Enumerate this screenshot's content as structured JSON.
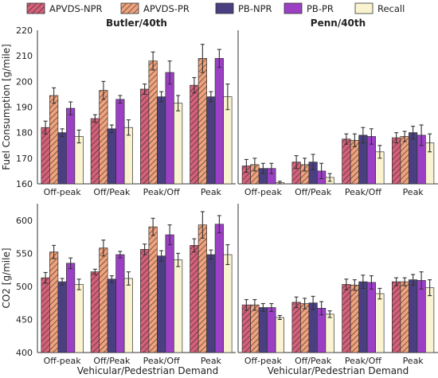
{
  "chart_data": {
    "type": "bar",
    "legend": {
      "placement": "top",
      "entries": [
        "APVDS-NPR",
        "APVDS-PR",
        "PB-NPR",
        "PB-PR",
        "Recall"
      ]
    },
    "series_style": [
      {
        "name": "APVDS-NPR",
        "color": "#d6607a",
        "hatch": true
      },
      {
        "name": "APVDS-PR",
        "color": "#f0a27c",
        "hatch": true
      },
      {
        "name": "PB-NPR",
        "color": "#4a3f80",
        "hatch": false
      },
      {
        "name": "PB-PR",
        "color": "#9b3fc4",
        "hatch": false
      },
      {
        "name": "Recall",
        "color": "#faf3cf",
        "hatch": false
      }
    ],
    "categories": [
      "Off-peak",
      "Off/Peak",
      "Peak/Off",
      "Peak"
    ],
    "xlabel": "Vehicular/Pedestrian Demand",
    "rows": [
      {
        "ylabel": "Fuel Consumption [g/mile]",
        "ylim": [
          160,
          220
        ],
        "yticks": [
          160,
          170,
          180,
          190,
          200,
          210,
          220
        ],
        "panels": [
          {
            "title": "Butler/40th",
            "values": [
              [
                182,
                185.5,
                197,
                198.5
              ],
              [
                194.5,
                196.5,
                208,
                209
              ],
              [
                180,
                181.5,
                194,
                194
              ],
              [
                189.5,
                193,
                203.5,
                209
              ],
              [
                178.5,
                182,
                191.5,
                194
              ]
            ],
            "errors": [
              [
                2.5,
                1.5,
                2,
                3
              ],
              [
                3,
                3.5,
                3.5,
                5.5
              ],
              [
                1.5,
                1.5,
                2,
                2
              ],
              [
                2.5,
                1.5,
                4.5,
                3.5
              ],
              [
                2.5,
                3,
                3,
                5
              ]
            ]
          },
          {
            "title": "Penn/40th",
            "values": [
              [
                167,
                168.5,
                177.5,
                178
              ],
              [
                167.5,
                167.5,
                177,
                178.5
              ],
              [
                166,
                168.5,
                179,
                180
              ],
              [
                166,
                165,
                178.5,
                179
              ],
              [
                160.5,
                162.5,
                172.5,
                176
              ]
            ],
            "errors": [
              [
                2.5,
                2.5,
                2,
                2
              ],
              [
                2.5,
                2.5,
                2.5,
                2
              ],
              [
                2,
                3,
                3,
                2.5
              ],
              [
                2,
                3,
                3,
                4
              ],
              [
                0.5,
                1.5,
                2.5,
                3.5
              ]
            ]
          }
        ]
      },
      {
        "ylabel": "CO2 [g/mile]",
        "ylim": [
          400,
          625
        ],
        "yticks": [
          400,
          450,
          500,
          550,
          600
        ],
        "panels": [
          {
            "title": "",
            "values": [
              [
                513,
                522,
                556,
                562
              ],
              [
                552,
                558,
                590,
                593
              ],
              [
                507,
                511,
                546,
                548
              ],
              [
                535,
                548,
                578,
                594
              ],
              [
                503,
                512,
                540,
                548
              ]
            ],
            "errors": [
              [
                8,
                4,
                8,
                10
              ],
              [
                10,
                12,
                13,
                20
              ],
              [
                5,
                5,
                8,
                7
              ],
              [
                8,
                5,
                15,
                13
              ],
              [
                8,
                10,
                10,
                15
              ]
            ]
          },
          {
            "title": "",
            "values": [
              [
                472,
                476,
                503,
                507
              ],
              [
                472,
                474,
                502,
                507
              ],
              [
                468,
                475,
                507,
                510
              ],
              [
                468,
                467,
                506,
                509
              ],
              [
                453,
                458,
                489,
                498
              ]
            ],
            "errors": [
              [
                8,
                8,
                8,
                6
              ],
              [
                8,
                8,
                8,
                6
              ],
              [
                6,
                10,
                10,
                8
              ],
              [
                6,
                10,
                10,
                13
              ],
              [
                3,
                5,
                8,
                12
              ]
            ]
          }
        ]
      }
    ]
  }
}
